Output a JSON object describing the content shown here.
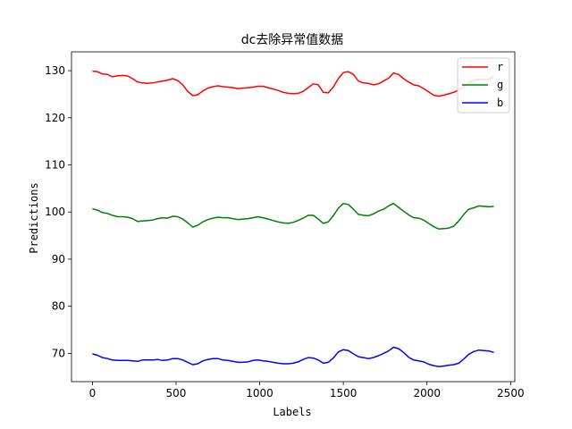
{
  "chart_data": {
    "type": "line",
    "title": "dc去除异常值数据",
    "xlabel": "Labels",
    "ylabel": "Predictions",
    "xlim": [
      -125,
      2525
    ],
    "ylim": [
      64,
      134
    ],
    "xticks": [
      0,
      500,
      1000,
      1500,
      2000,
      2500
    ],
    "yticks": [
      70,
      80,
      90,
      100,
      110,
      120,
      130
    ],
    "grid": false,
    "legend_position": "top-right",
    "series": [
      {
        "name": "r",
        "color": "#ff0000",
        "x": [
          0,
          30,
          60,
          90,
          120,
          150,
          180,
          210,
          240,
          270,
          300,
          330,
          360,
          390,
          420,
          450,
          480,
          510,
          540,
          570,
          600,
          630,
          660,
          690,
          720,
          750,
          780,
          810,
          840,
          870,
          900,
          930,
          960,
          990,
          1020,
          1050,
          1080,
          1110,
          1140,
          1170,
          1200,
          1230,
          1260,
          1290,
          1320,
          1350,
          1380,
          1410,
          1440,
          1470,
          1500,
          1530,
          1560,
          1590,
          1620,
          1650,
          1680,
          1710,
          1740,
          1770,
          1800,
          1830,
          1860,
          1890,
          1920,
          1950,
          1980,
          2010,
          2040,
          2070,
          2100,
          2130,
          2160,
          2190,
          2220,
          2250,
          2280,
          2310,
          2340,
          2370,
          2400
        ],
        "values": [
          129.9,
          129.8,
          129.3,
          129.2,
          128.7,
          128.9,
          129.0,
          128.9,
          128.3,
          127.6,
          127.4,
          127.3,
          127.4,
          127.6,
          127.8,
          128.0,
          128.3,
          127.9,
          127.0,
          125.6,
          124.7,
          124.9,
          125.7,
          126.3,
          126.6,
          126.8,
          126.6,
          126.5,
          126.4,
          126.2,
          126.3,
          126.4,
          126.5,
          126.7,
          126.7,
          126.4,
          126.1,
          125.8,
          125.4,
          125.2,
          125.1,
          125.2,
          125.6,
          126.4,
          127.2,
          127.0,
          125.4,
          125.3,
          126.5,
          128.3,
          129.6,
          129.8,
          129.2,
          127.8,
          127.4,
          127.3,
          127.0,
          127.2,
          127.8,
          128.4,
          129.5,
          129.2,
          128.3,
          127.6,
          127.0,
          126.8,
          126.2,
          125.5,
          124.8,
          124.6,
          124.8,
          125.1,
          125.4,
          125.9,
          126.5,
          127.3,
          128.0,
          128.2,
          128.1,
          128.2,
          128.8
        ]
      },
      {
        "name": "g",
        "color": "#008000",
        "x": [
          0,
          30,
          60,
          90,
          120,
          150,
          180,
          210,
          240,
          270,
          300,
          330,
          360,
          390,
          420,
          450,
          480,
          510,
          540,
          570,
          600,
          630,
          660,
          690,
          720,
          750,
          780,
          810,
          840,
          870,
          900,
          930,
          960,
          990,
          1020,
          1050,
          1080,
          1110,
          1140,
          1170,
          1200,
          1230,
          1260,
          1290,
          1320,
          1350,
          1380,
          1410,
          1440,
          1470,
          1500,
          1530,
          1560,
          1590,
          1620,
          1650,
          1680,
          1710,
          1740,
          1770,
          1800,
          1830,
          1860,
          1890,
          1920,
          1950,
          1980,
          2010,
          2040,
          2070,
          2100,
          2130,
          2160,
          2190,
          2220,
          2250,
          2280,
          2310,
          2340,
          2370,
          2400
        ],
        "values": [
          100.7,
          100.4,
          99.9,
          99.7,
          99.3,
          99.0,
          99.0,
          98.9,
          98.6,
          98.0,
          98.1,
          98.2,
          98.3,
          98.6,
          98.8,
          98.7,
          99.1,
          99.0,
          98.5,
          97.7,
          96.8,
          97.2,
          97.9,
          98.4,
          98.7,
          98.9,
          98.8,
          98.8,
          98.6,
          98.4,
          98.5,
          98.6,
          98.8,
          99.0,
          98.8,
          98.5,
          98.2,
          97.9,
          97.7,
          97.6,
          97.8,
          98.2,
          98.7,
          99.3,
          99.3,
          98.5,
          97.6,
          97.9,
          99.2,
          100.8,
          101.8,
          101.6,
          100.6,
          99.5,
          99.3,
          99.2,
          99.6,
          100.2,
          100.6,
          101.3,
          101.8,
          101.0,
          100.2,
          99.4,
          98.8,
          98.7,
          98.3,
          97.6,
          96.9,
          96.4,
          96.5,
          96.6,
          97.0,
          98.1,
          99.5,
          100.6,
          100.9,
          101.3,
          101.2,
          101.1,
          101.2
        ]
      },
      {
        "name": "b",
        "color": "#0000ff",
        "x": [
          0,
          30,
          60,
          90,
          120,
          150,
          180,
          210,
          240,
          270,
          300,
          330,
          360,
          390,
          420,
          450,
          480,
          510,
          540,
          570,
          600,
          630,
          660,
          690,
          720,
          750,
          780,
          810,
          840,
          870,
          900,
          930,
          960,
          990,
          1020,
          1050,
          1080,
          1110,
          1140,
          1170,
          1200,
          1230,
          1260,
          1290,
          1320,
          1350,
          1380,
          1410,
          1440,
          1470,
          1500,
          1530,
          1560,
          1590,
          1620,
          1650,
          1680,
          1710,
          1740,
          1770,
          1800,
          1830,
          1860,
          1890,
          1920,
          1950,
          1980,
          2010,
          2040,
          2070,
          2100,
          2130,
          2160,
          2190,
          2220,
          2250,
          2280,
          2310,
          2340,
          2370,
          2400
        ],
        "values": [
          69.9,
          69.6,
          69.1,
          68.9,
          68.6,
          68.5,
          68.5,
          68.5,
          68.4,
          68.3,
          68.6,
          68.6,
          68.6,
          68.7,
          68.5,
          68.6,
          68.9,
          68.9,
          68.6,
          68.1,
          67.6,
          67.8,
          68.4,
          68.7,
          68.9,
          68.9,
          68.6,
          68.5,
          68.3,
          68.1,
          68.1,
          68.2,
          68.5,
          68.6,
          68.4,
          68.3,
          68.1,
          67.9,
          67.8,
          67.8,
          67.9,
          68.2,
          68.7,
          69.1,
          69.0,
          68.6,
          67.9,
          68.1,
          69.0,
          70.3,
          70.8,
          70.6,
          69.9,
          69.3,
          69.1,
          68.9,
          69.1,
          69.5,
          70.0,
          70.5,
          71.3,
          71.0,
          70.2,
          69.2,
          68.6,
          68.4,
          68.2,
          67.7,
          67.4,
          67.2,
          67.3,
          67.5,
          67.6,
          67.9,
          68.8,
          69.8,
          70.4,
          70.7,
          70.6,
          70.5,
          70.2
        ]
      }
    ]
  }
}
